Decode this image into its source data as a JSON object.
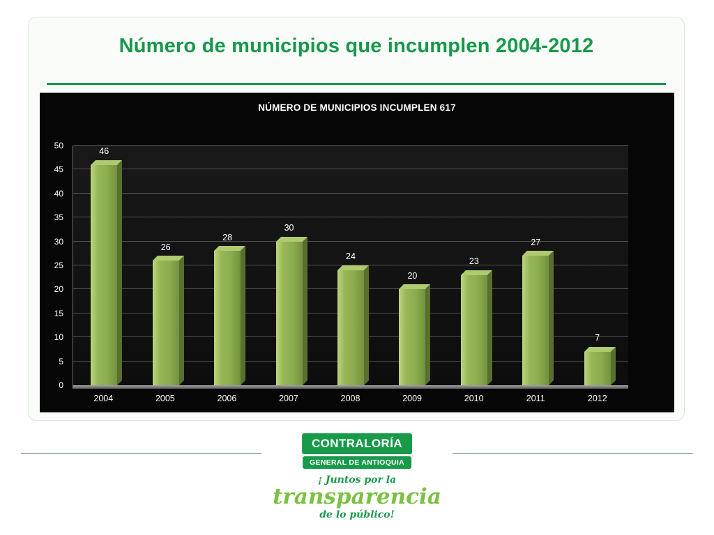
{
  "slide": {
    "title": "Número de municipios que incumplen 2004-2012"
  },
  "chart_data": {
    "type": "bar",
    "title": "NÚMERO DE MUNICIPIOS INCUMPLEN 617",
    "categories": [
      "2004",
      "2005",
      "2006",
      "2007",
      "2008",
      "2009",
      "2010",
      "2011",
      "2012"
    ],
    "values": [
      46,
      26,
      28,
      30,
      24,
      20,
      23,
      27,
      7
    ],
    "xlabel": "",
    "ylabel": "",
    "ylim": [
      0,
      50
    ],
    "yticks": [
      0,
      5,
      10,
      15,
      20,
      25,
      30,
      35,
      40,
      45,
      50
    ],
    "grid": true,
    "legend": false,
    "background": "#060606",
    "bar_color": "#8cad4e",
    "data_label_color": "#ffffff"
  },
  "footer": {
    "logo_line1": "CONTRALORÍA",
    "logo_line2": "GENERAL DE ANTIOQUIA",
    "tagline1": "¡ Juntos por la",
    "tagline2": "transparencia",
    "tagline3": "de lo público!"
  },
  "colors": {
    "accent_green": "#17994a",
    "logo_green": "#189a4b",
    "light_green": "#7cc142",
    "chart_background": "#060606"
  }
}
